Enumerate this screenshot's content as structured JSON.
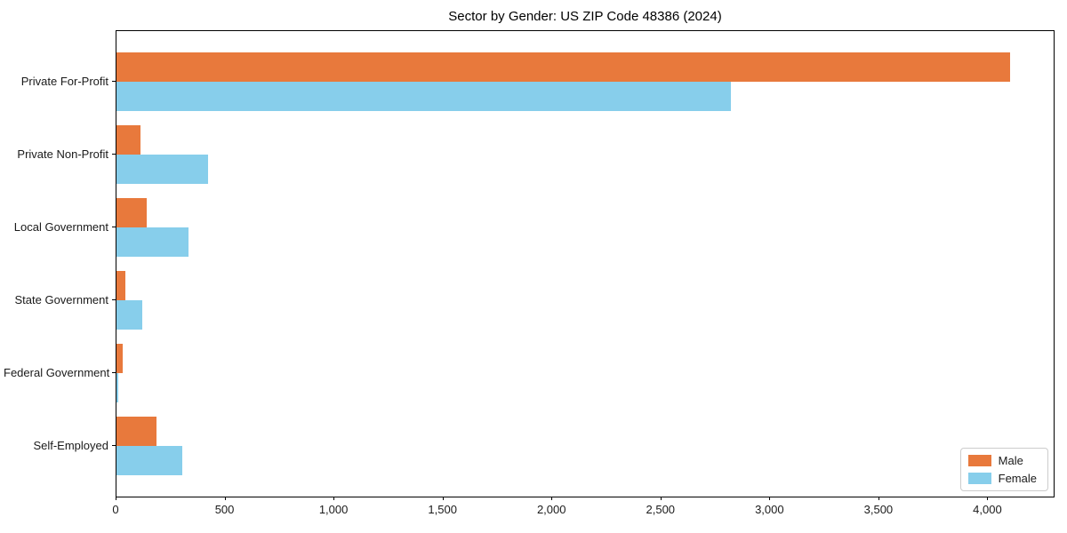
{
  "chart_data": {
    "type": "bar",
    "orientation": "horizontal",
    "title": "Sector by Gender: US ZIP Code 48386 (2024)",
    "categories": [
      "Private For-Profit",
      "Private Non-Profit",
      "Local Government",
      "State Government",
      "Federal Government",
      "Self-Employed"
    ],
    "series": [
      {
        "name": "Male",
        "color": "#E8793C",
        "values": [
          4100,
          110,
          140,
          40,
          30,
          185
        ]
      },
      {
        "name": "Female",
        "color": "#87CEEB",
        "values": [
          2820,
          420,
          330,
          120,
          10,
          300
        ]
      }
    ],
    "xlabel": "",
    "ylabel": "",
    "xlim": [
      0,
      4300
    ],
    "xticks": [
      0,
      500,
      1000,
      1500,
      2000,
      2500,
      3000,
      3500,
      4000
    ],
    "xtick_labels": [
      "0",
      "500",
      "1,000",
      "1,500",
      "2,000",
      "2,500",
      "3,000",
      "3,500",
      "4,000"
    ],
    "grid": false,
    "legend_position": "lower right"
  }
}
